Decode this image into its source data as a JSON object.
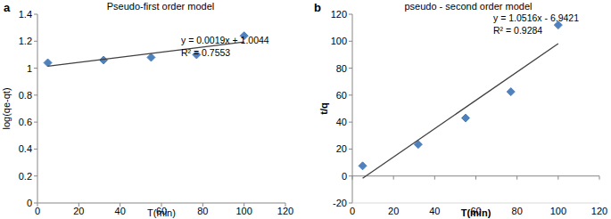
{
  "chart_data": [
    {
      "type": "scatter",
      "panel_label": "a",
      "title": "Pseudo-first order model",
      "x_label": "T(min)",
      "y_label": "log(qe-qt)",
      "annotations": [
        "y = 0.0019x + 1.0044",
        "R² = 0.7553"
      ],
      "xlim": [
        0,
        120
      ],
      "xticks": [
        0,
        20,
        40,
        60,
        80,
        100,
        120
      ],
      "ylim": [
        0,
        1.4
      ],
      "yticks": [
        0,
        0.2,
        0.4,
        0.6,
        0.8,
        1,
        1.2,
        1.4
      ],
      "grid": false,
      "series": [
        {
          "type": "scatter",
          "marker": "diamond",
          "color": "#4f81bd",
          "x": [
            5,
            32,
            55,
            77,
            100
          ],
          "values": [
            1.04,
            1.06,
            1.08,
            1.1,
            1.24
          ]
        },
        {
          "type": "line",
          "line_style": "solid",
          "color": "#404040",
          "x": [
            5,
            100
          ],
          "values": [
            1.0139,
            1.1944
          ]
        }
      ]
    },
    {
      "type": "scatter",
      "panel_label": "b",
      "title": "pseudo - second order model",
      "x_label": "T(min)",
      "y_label": "t/q",
      "annotations": [
        "y = 1.0516x - 6.9421",
        "R² = 0.9284"
      ],
      "xlim": [
        0,
        120
      ],
      "xticks": [
        0,
        20,
        40,
        60,
        80,
        100,
        120
      ],
      "ylim": [
        -20,
        120
      ],
      "yticks": [
        -20,
        0,
        20,
        40,
        60,
        80,
        100,
        120
      ],
      "grid": false,
      "series": [
        {
          "type": "scatter",
          "marker": "diamond",
          "color": "#4f81bd",
          "x": [
            5,
            32,
            55,
            77,
            100
          ],
          "values": [
            7.5,
            23.5,
            43,
            62.5,
            112
          ]
        },
        {
          "type": "line",
          "line_style": "solid",
          "color": "#404040",
          "x": [
            5,
            100
          ],
          "values": [
            -1.68,
            98.2
          ]
        }
      ]
    }
  ]
}
